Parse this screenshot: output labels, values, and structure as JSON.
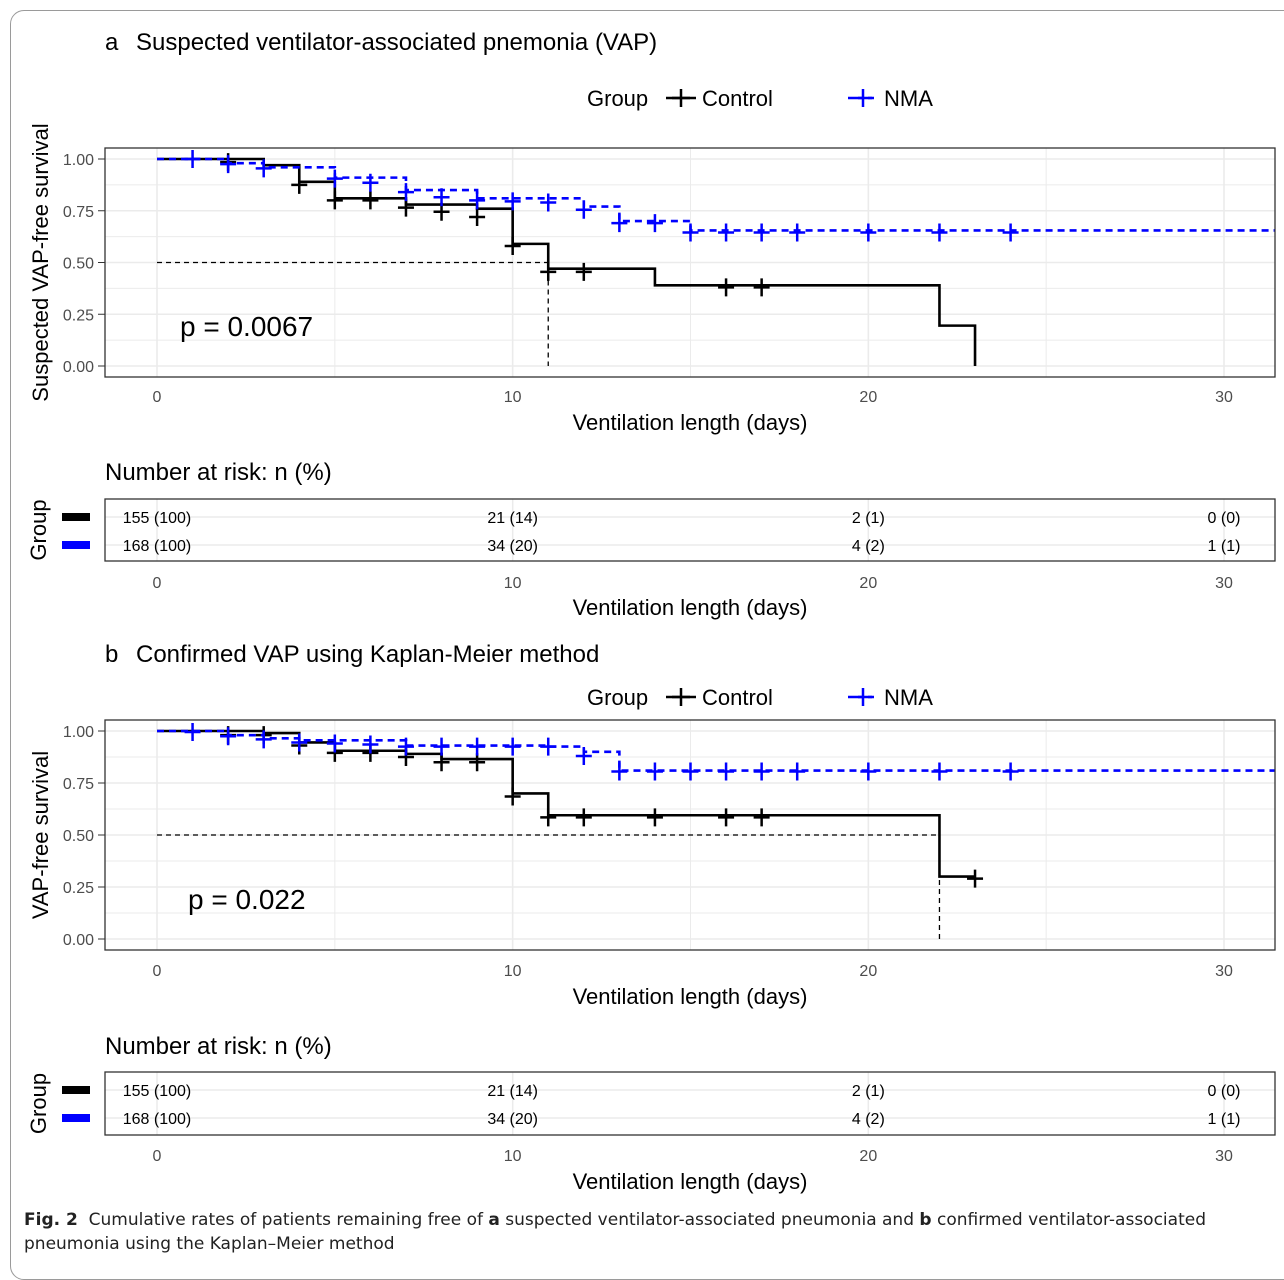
{
  "colors": {
    "control": "#000000",
    "nma": "#0000ff"
  },
  "chart_data": [
    {
      "type": "line",
      "panel_label": "a",
      "title": "Suspected ventilator-associated pnemonia (VAP)",
      "legend_title": "Group",
      "legend_position": "top",
      "xlabel": "Ventilation length (days)",
      "ylabel": "Suspected VAP-free survival",
      "xlim": [
        0,
        31.5
      ],
      "ylim": [
        0,
        1
      ],
      "x_ticks": [
        "0",
        "10",
        "20",
        "30"
      ],
      "y_ticks": [
        "0.00",
        "0.25",
        "0.50",
        "0.75",
        "1.00"
      ],
      "grid": true,
      "p_value_text": "p = 0.0067",
      "median_line": {
        "y": 0.5,
        "x": 11
      },
      "series": [
        {
          "name": "Control",
          "line_style": "solid",
          "color": "#000000",
          "steps": [
            [
              0,
              1.0
            ],
            [
              3,
              0.97
            ],
            [
              4,
              0.89
            ],
            [
              5,
              0.81
            ],
            [
              7,
              0.78
            ],
            [
              9,
              0.76
            ],
            [
              10,
              0.59
            ],
            [
              11,
              0.47
            ],
            [
              14,
              0.39
            ],
            [
              22,
              0.195
            ],
            [
              23,
              0.0
            ]
          ],
          "end_x": 23,
          "censored": [
            [
              2,
              0.985
            ],
            [
              4,
              0.875
            ],
            [
              5,
              0.8
            ],
            [
              6,
              0.8
            ],
            [
              7,
              0.765
            ],
            [
              8,
              0.745
            ],
            [
              9,
              0.72
            ],
            [
              10,
              0.58
            ],
            [
              11,
              0.455
            ],
            [
              12,
              0.455
            ],
            [
              16,
              0.38
            ],
            [
              17,
              0.38
            ]
          ]
        },
        {
          "name": "NMA",
          "line_style": "dashed",
          "color": "#0000ff",
          "steps": [
            [
              0,
              1.0
            ],
            [
              2,
              0.98
            ],
            [
              3,
              0.96
            ],
            [
              5,
              0.91
            ],
            [
              7,
              0.85
            ],
            [
              9,
              0.81
            ],
            [
              12,
              0.77
            ],
            [
              13,
              0.7
            ],
            [
              15,
              0.655
            ]
          ],
          "end_x": 31.5,
          "censored": [
            [
              1,
              1.0
            ],
            [
              2,
              0.975
            ],
            [
              3,
              0.955
            ],
            [
              5,
              0.905
            ],
            [
              6,
              0.885
            ],
            [
              7,
              0.84
            ],
            [
              8,
              0.815
            ],
            [
              9,
              0.8
            ],
            [
              10,
              0.795
            ],
            [
              11,
              0.79
            ],
            [
              12,
              0.755
            ],
            [
              13,
              0.69
            ],
            [
              14,
              0.69
            ],
            [
              15,
              0.645
            ],
            [
              16,
              0.645
            ],
            [
              17,
              0.645
            ],
            [
              18,
              0.645
            ],
            [
              20,
              0.645
            ],
            [
              22,
              0.645
            ],
            [
              24,
              0.645
            ]
          ]
        }
      ],
      "risk_table": {
        "title": "Number at risk: n (%)",
        "ylabel": "Group",
        "xlabel": "Ventilation length (days)",
        "columns": [
          "0",
          "10",
          "20",
          "30"
        ],
        "rows": [
          {
            "name": "Control",
            "values": [
              "155 (100)",
              "21 (14)",
              "2 (1)",
              "0 (0)"
            ]
          },
          {
            "name": "NMA",
            "values": [
              "168 (100)",
              "34 (20)",
              "4 (2)",
              "1 (1)"
            ]
          }
        ]
      }
    },
    {
      "type": "line",
      "panel_label": "b",
      "title": "Confirmed VAP using Kaplan-Meier method",
      "legend_title": "Group",
      "legend_position": "top",
      "xlabel": "Ventilation length (days)",
      "ylabel": "VAP-free survival",
      "xlim": [
        0,
        31.5
      ],
      "ylim": [
        0,
        1
      ],
      "x_ticks": [
        "0",
        "10",
        "20",
        "30"
      ],
      "y_ticks": [
        "0.00",
        "0.25",
        "0.50",
        "0.75",
        "1.00"
      ],
      "grid": true,
      "p_value_text": "p = 0.022",
      "median_line": {
        "y": 0.5,
        "x": 22
      },
      "series": [
        {
          "name": "Control",
          "line_style": "solid",
          "color": "#000000",
          "steps": [
            [
              0,
              1.0
            ],
            [
              3,
              0.99
            ],
            [
              4,
              0.945
            ],
            [
              5,
              0.905
            ],
            [
              7,
              0.89
            ],
            [
              8,
              0.865
            ],
            [
              10,
              0.7
            ],
            [
              11,
              0.595
            ],
            [
              22,
              0.3
            ]
          ],
          "end_x": 23,
          "censored": [
            [
              2,
              0.98
            ],
            [
              3,
              0.98
            ],
            [
              4,
              0.93
            ],
            [
              5,
              0.895
            ],
            [
              6,
              0.895
            ],
            [
              7,
              0.875
            ],
            [
              8,
              0.85
            ],
            [
              9,
              0.85
            ],
            [
              10,
              0.685
            ],
            [
              11,
              0.585
            ],
            [
              12,
              0.585
            ],
            [
              14,
              0.585
            ],
            [
              16,
              0.585
            ],
            [
              17,
              0.585
            ],
            [
              23,
              0.29
            ]
          ]
        },
        {
          "name": "NMA",
          "line_style": "dashed",
          "color": "#0000ff",
          "steps": [
            [
              0,
              1.0
            ],
            [
              2,
              0.98
            ],
            [
              3,
              0.965
            ],
            [
              4,
              0.955
            ],
            [
              7,
              0.93
            ],
            [
              11,
              0.925
            ],
            [
              12,
              0.9
            ],
            [
              13,
              0.81
            ]
          ],
          "end_x": 31.5,
          "censored": [
            [
              1,
              0.995
            ],
            [
              2,
              0.975
            ],
            [
              3,
              0.96
            ],
            [
              4,
              0.945
            ],
            [
              5,
              0.94
            ],
            [
              6,
              0.935
            ],
            [
              7,
              0.925
            ],
            [
              8,
              0.925
            ],
            [
              9,
              0.925
            ],
            [
              10,
              0.925
            ],
            [
              11,
              0.925
            ],
            [
              12,
              0.88
            ],
            [
              13,
              0.805
            ],
            [
              14,
              0.805
            ],
            [
              15,
              0.805
            ],
            [
              16,
              0.805
            ],
            [
              17,
              0.805
            ],
            [
              18,
              0.805
            ],
            [
              20,
              0.805
            ],
            [
              22,
              0.805
            ],
            [
              24,
              0.805
            ]
          ]
        }
      ],
      "risk_table": {
        "title": "Number at risk: n (%)",
        "ylabel": "Group",
        "xlabel": "Ventilation length (days)",
        "columns": [
          "0",
          "10",
          "20",
          "30"
        ],
        "rows": [
          {
            "name": "Control",
            "values": [
              "155 (100)",
              "21 (14)",
              "2 (1)",
              "0 (0)"
            ]
          },
          {
            "name": "NMA",
            "values": [
              "168 (100)",
              "34 (20)",
              "4 (2)",
              "1 (1)"
            ]
          }
        ]
      }
    }
  ],
  "caption": {
    "fig_label": "Fig. 2",
    "text1": "Cumulative rates of patients remaining free of",
    "a": "a",
    "text2": "suspected ventilator-associated pneumonia and",
    "b": "b",
    "text3": "confirmed ventilator-associated pneumonia using the Kaplan–Meier method"
  }
}
